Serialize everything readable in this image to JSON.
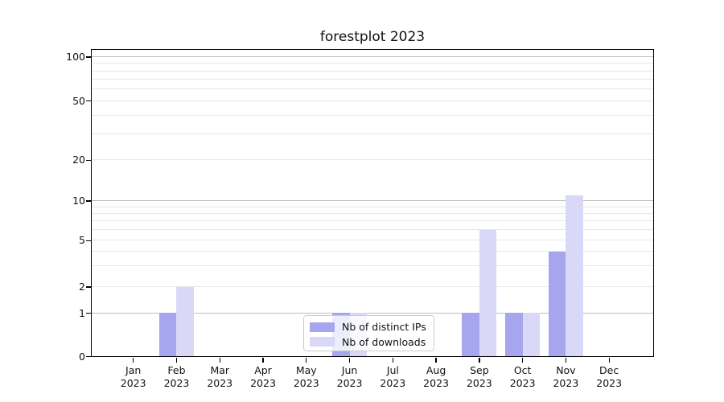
{
  "title": "forestplot 2023",
  "chart_data": {
    "type": "bar",
    "title": "forestplot 2023",
    "categories": [
      "Jan",
      "Feb",
      "Mar",
      "Apr",
      "May",
      "Jun",
      "Jul",
      "Aug",
      "Sep",
      "Oct",
      "Nov",
      "Dec"
    ],
    "category_year": "2023",
    "series": [
      {
        "name": "Nb of distinct IPs",
        "color": "#a6a6ee",
        "values": [
          0,
          1,
          0,
          0,
          0,
          1,
          0,
          0,
          1,
          1,
          4,
          0
        ]
      },
      {
        "name": "Nb of downloads",
        "color": "#d9d9f7",
        "values": [
          0,
          2,
          0,
          0,
          0,
          1,
          0,
          0,
          6,
          1,
          11,
          0
        ]
      }
    ],
    "xlabel": "",
    "ylabel": "",
    "yscale": "quasi-log (0,1,2,5,10,20,50,100)",
    "ylim": [
      0,
      110
    ],
    "y_major_ticks": [
      0,
      1,
      2,
      5,
      10,
      20,
      50,
      100
    ],
    "y_decade_gridlines": [
      1,
      10,
      100
    ],
    "y_minor_gridlines": [
      2,
      5,
      20,
      50,
      3,
      4,
      6,
      7,
      8,
      9,
      30,
      40,
      60,
      70,
      80,
      90
    ],
    "grid": true,
    "legend_position": "lower center inside axes"
  },
  "colors": {
    "bar_distinct_ips": "#a6a6ee",
    "bar_downloads": "#d9d9f7",
    "grid_decade": "#bdbdbd",
    "grid_light": "#e8e8e8",
    "spine": "#000000",
    "text": "#111111",
    "legend_border": "#cccccc"
  }
}
